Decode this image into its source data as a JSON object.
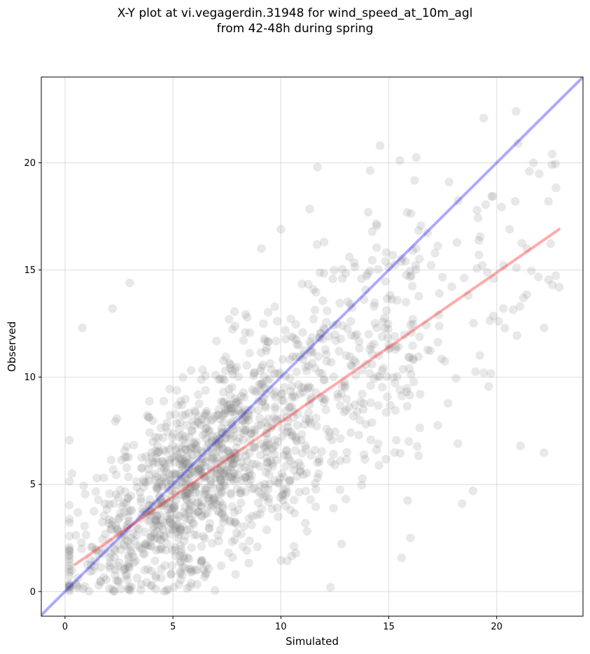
{
  "chart_data": {
    "type": "scatter",
    "title_line1": "X-Y plot at vi.vegagerdin.31948 for wind_speed_at_10m_agl",
    "title_line2": "from 42-48h during spring",
    "xlabel": "Simulated",
    "ylabel": "Observed",
    "xlim": [
      -1.1,
      24.0
    ],
    "ylim": [
      -1.15,
      24.0
    ],
    "xticks": [
      0,
      5,
      10,
      15,
      20
    ],
    "yticks": [
      0,
      5,
      10,
      15,
      20
    ],
    "grid": true,
    "point_color": "#808080",
    "point_alpha": 0.18,
    "identity_line": {
      "from": [
        -1.1,
        -1.1
      ],
      "to": [
        24.0,
        24.0
      ],
      "color": "#0000ff",
      "alpha": 0.33
    },
    "fit_line": {
      "from": [
        0.45,
        1.25
      ],
      "to": [
        22.9,
        16.9
      ],
      "color": "#ff0000",
      "alpha": 0.33
    },
    "cloud": {
      "n": 1500,
      "seed": 31948,
      "x_range": [
        0.2,
        23.0
      ],
      "slope": 0.7,
      "intercept": 1.0,
      "noise_sd": 2.4
    },
    "outliers": [
      [
        0.8,
        12.3
      ],
      [
        2.2,
        13.2
      ],
      [
        3.0,
        14.4
      ],
      [
        11.7,
        19.8
      ],
      [
        14.6,
        20.8
      ],
      [
        17.8,
        19.1
      ],
      [
        20.9,
        22.4
      ],
      [
        21.0,
        20.9
      ],
      [
        21.7,
        20.0
      ],
      [
        22.9,
        14.2
      ],
      [
        22.2,
        12.3
      ],
      [
        21.1,
        6.8
      ],
      [
        18.2,
        6.9
      ],
      [
        18.4,
        4.1
      ],
      [
        18.9,
        4.7
      ],
      [
        16.0,
        2.5
      ],
      [
        12.3,
        0.2
      ],
      [
        7.6,
        12.7
      ],
      [
        9.1,
        16.0
      ],
      [
        10.0,
        16.9
      ],
      [
        12.0,
        16.3
      ],
      [
        19.4,
        10.2
      ],
      [
        20.6,
        16.9
      ],
      [
        22.4,
        18.2
      ],
      [
        21.4,
        16.0
      ]
    ]
  }
}
